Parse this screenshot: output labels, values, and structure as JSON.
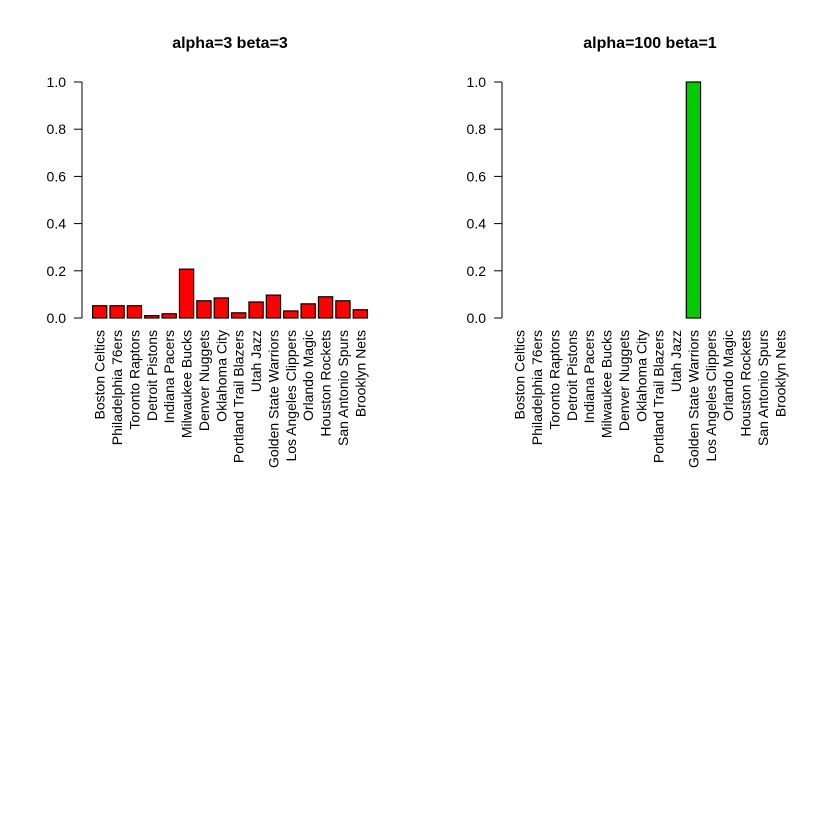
{
  "chart_data": [
    {
      "type": "bar",
      "title": "alpha=3 beta=3",
      "xlabel": "",
      "ylabel": "",
      "ylim": [
        0,
        1
      ],
      "yticks": [
        "0.0",
        "0.2",
        "0.4",
        "0.6",
        "0.8",
        "1.0"
      ],
      "bar_color": "#ff0000",
      "categories": [
        "Boston Celtics",
        "Philadelphia 76ers",
        "Toronto Raptors",
        "Detroit Pistons",
        "Indiana Pacers",
        "Milwaukee Bucks",
        "Denver Nuggets",
        "Oklahoma City",
        "Portland Trail Blazers",
        "Utah Jazz",
        "Golden State Warriors",
        "Los Angeles Clippers",
        "Orlando Magic",
        "Houston Rockets",
        "San Antonio Spurs",
        "Brooklyn Nets"
      ],
      "values": [
        0.052,
        0.052,
        0.052,
        0.01,
        0.018,
        0.207,
        0.073,
        0.085,
        0.022,
        0.068,
        0.097,
        0.03,
        0.06,
        0.09,
        0.073,
        0.035
      ]
    },
    {
      "type": "bar",
      "title": "alpha=100 beta=1",
      "xlabel": "",
      "ylabel": "",
      "ylim": [
        0,
        1
      ],
      "yticks": [
        "0.0",
        "0.2",
        "0.4",
        "0.6",
        "0.8",
        "1.0"
      ],
      "bar_color": "#00cc00",
      "categories": [
        "Boston Celtics",
        "Philadelphia 76ers",
        "Toronto Raptors",
        "Detroit Pistons",
        "Indiana Pacers",
        "Milwaukee Bucks",
        "Denver Nuggets",
        "Oklahoma City",
        "Portland Trail Blazers",
        "Utah Jazz",
        "Golden State Warriors",
        "Los Angeles Clippers",
        "Orlando Magic",
        "Houston Rockets",
        "San Antonio Spurs",
        "Brooklyn Nets"
      ],
      "values": [
        0,
        0,
        0,
        0,
        0,
        0,
        0,
        0,
        0,
        0,
        1.0,
        0,
        0,
        0,
        0,
        0
      ]
    }
  ]
}
